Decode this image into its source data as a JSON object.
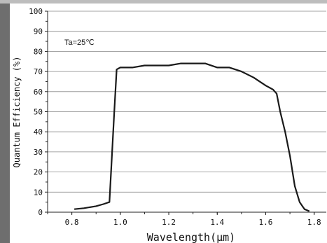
{
  "chart_data": {
    "type": "line",
    "title": "",
    "xlabel": "Wavelength(μm)",
    "ylabel": "Quantum Efficiency (%)",
    "xlim": [
      0.7,
      1.85
    ],
    "ylim": [
      0,
      100
    ],
    "x_ticks": [
      "0.8",
      "1.0",
      "1.2",
      "1.4",
      "1.6",
      "1.8"
    ],
    "y_ticks": [
      "0",
      "10",
      "20",
      "30",
      "40",
      "50",
      "60",
      "70",
      "80",
      "90",
      "100"
    ],
    "grid": true,
    "annotation": "Ta=25℃",
    "series": [
      {
        "name": "",
        "x": [
          0.81,
          0.85,
          0.9,
          0.93,
          0.955,
          0.975,
          0.985,
          1.0,
          1.05,
          1.1,
          1.15,
          1.2,
          1.25,
          1.3,
          1.35,
          1.4,
          1.45,
          1.5,
          1.55,
          1.6,
          1.63,
          1.645,
          1.66,
          1.68,
          1.7,
          1.72,
          1.74,
          1.76,
          1.78
        ],
        "y": [
          1.5,
          2,
          3,
          4,
          5,
          50,
          71,
          72,
          72,
          73,
          73,
          73,
          74,
          74,
          74,
          72,
          72,
          70,
          67,
          63,
          61,
          59,
          50,
          40,
          28,
          13,
          5,
          1.5,
          0.5
        ]
      }
    ]
  }
}
